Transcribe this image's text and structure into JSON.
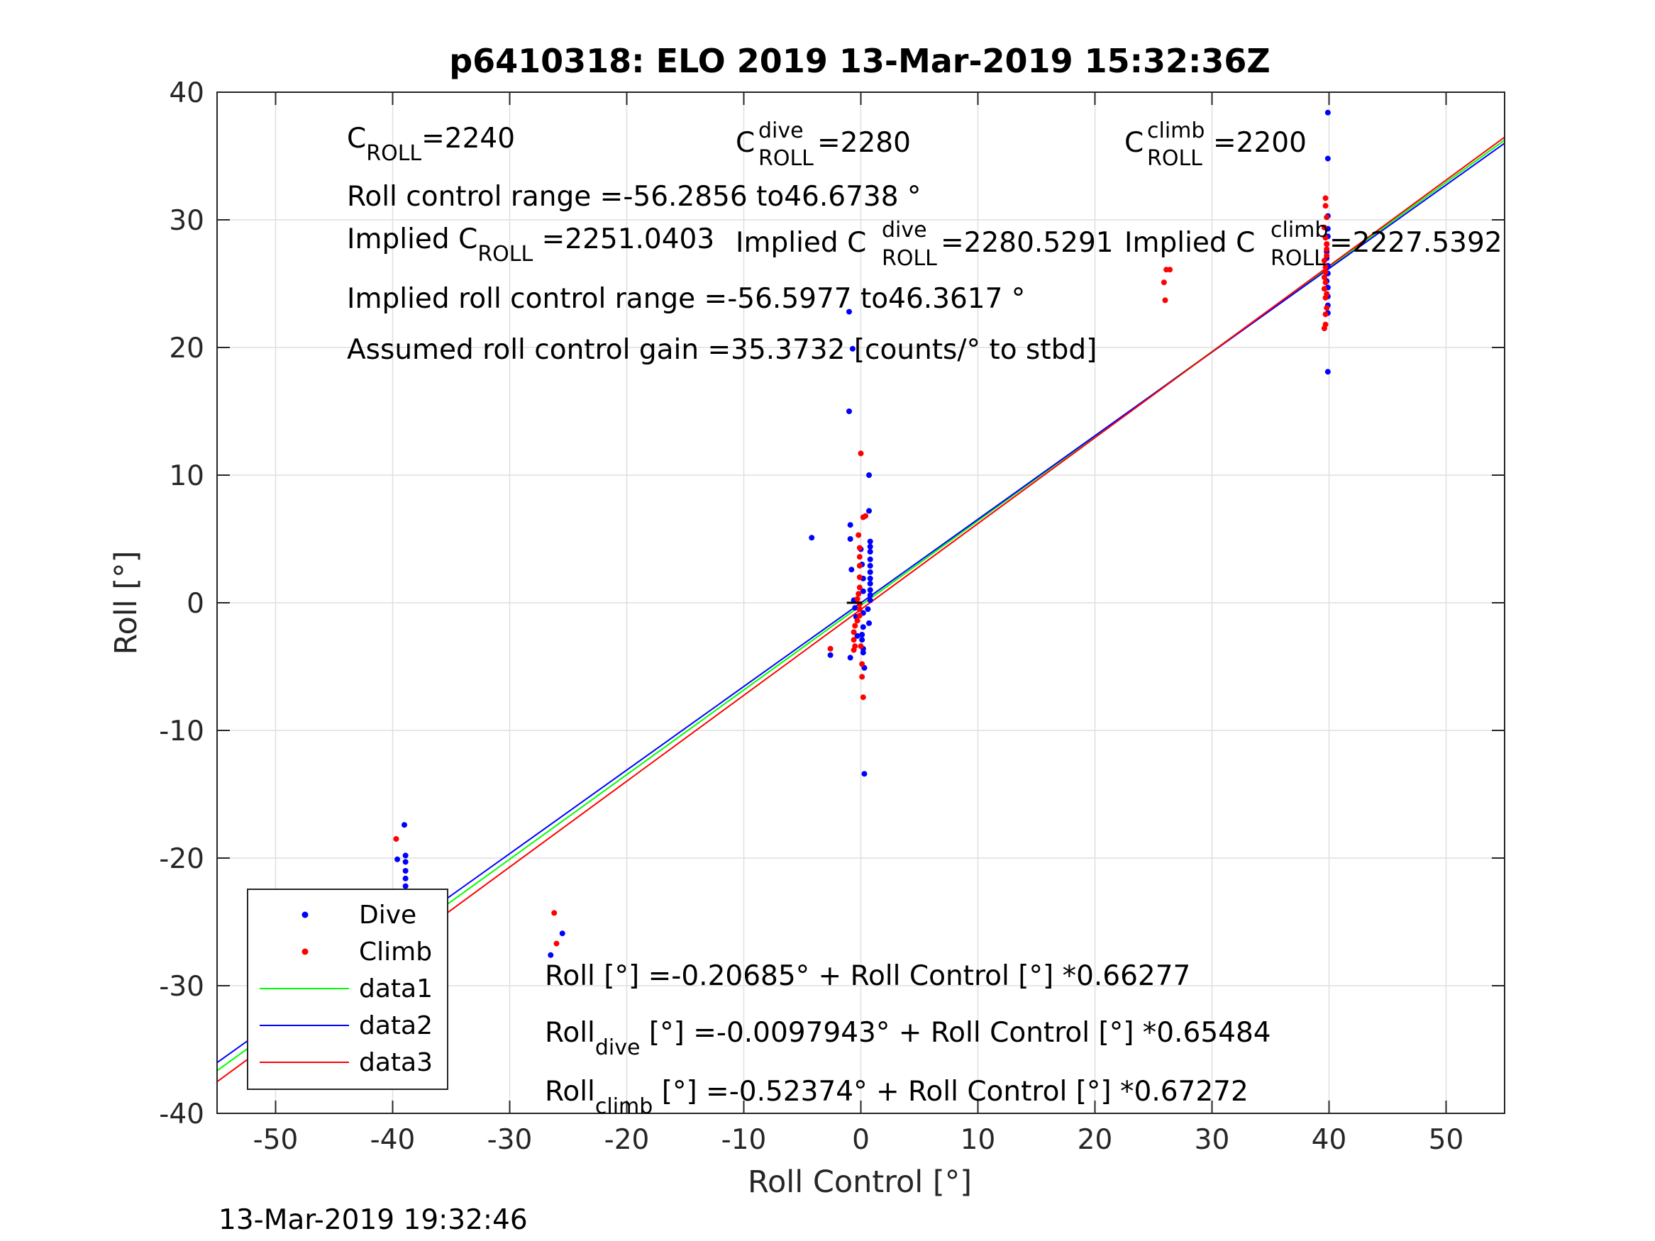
{
  "chart_data": {
    "type": "scatter",
    "title": "p6410318: ELO 2019 13-Mar-2019 15:32:36Z",
    "xlabel": "Roll Control [°]",
    "ylabel": "Roll [°]",
    "xlim": [
      -55,
      55
    ],
    "ylim": [
      -40,
      40
    ],
    "xticks": [
      -50,
      -40,
      -30,
      -20,
      -10,
      0,
      10,
      20,
      30,
      40,
      50
    ],
    "yticks": [
      -40,
      -30,
      -20,
      -10,
      0,
      10,
      20,
      30,
      40
    ],
    "xtick_labels": [
      "-50",
      "-40",
      "-30",
      "-20",
      "-10",
      "0",
      "10",
      "20",
      "30",
      "40",
      "50"
    ],
    "ytick_labels": [
      "-40",
      "-30",
      "-20",
      "-10",
      "0",
      "10",
      "20",
      "30",
      "40"
    ],
    "grid": true,
    "legend_position": "bottom-left",
    "series": [
      {
        "name": "Dive",
        "kind": "points",
        "color": "#0000ff",
        "points": [
          [
            -39.6,
            -20.1
          ],
          [
            -39.0,
            -17.4
          ],
          [
            -38.9,
            -19.8
          ],
          [
            -38.9,
            -20.3
          ],
          [
            -38.9,
            -21.0
          ],
          [
            -38.9,
            -21.6
          ],
          [
            -38.9,
            -22.2
          ],
          [
            -38.9,
            -22.8
          ],
          [
            -38.9,
            -23.5
          ],
          [
            -38.9,
            -24.2
          ],
          [
            -39.1,
            -25.1
          ],
          [
            -39.0,
            -26.0
          ],
          [
            -39.2,
            -26.8
          ],
          [
            -39.4,
            -27.3
          ],
          [
            -39.8,
            -27.6
          ],
          [
            -39.0,
            -28.2
          ],
          [
            -39.1,
            -28.5
          ],
          [
            -26.5,
            -27.6
          ],
          [
            -25.5,
            -25.9
          ],
          [
            -4.2,
            5.1
          ],
          [
            -2.6,
            -4.1
          ],
          [
            -1.0,
            22.8
          ],
          [
            -1.0,
            15.0
          ],
          [
            -0.9,
            6.1
          ],
          [
            -0.9,
            5.0
          ],
          [
            -0.8,
            2.6
          ],
          [
            -0.6,
            0.2
          ],
          [
            -0.5,
            -0.4
          ],
          [
            -0.4,
            -1.1
          ],
          [
            -0.3,
            -2.6
          ],
          [
            -0.9,
            -4.3
          ],
          [
            -0.7,
            19.9
          ],
          [
            0.0,
            4.2
          ],
          [
            0.1,
            3.0
          ],
          [
            0.2,
            1.9
          ],
          [
            0.2,
            0.9
          ],
          [
            0.2,
            -0.8
          ],
          [
            0.2,
            -1.9
          ],
          [
            0.1,
            -2.5
          ],
          [
            0.1,
            -2.9
          ],
          [
            0.2,
            -3.6
          ],
          [
            0.2,
            -3.9
          ],
          [
            0.3,
            -5.1
          ],
          [
            0.3,
            -13.4
          ],
          [
            0.7,
            10.0
          ],
          [
            0.7,
            7.2
          ],
          [
            0.8,
            4.8
          ],
          [
            0.8,
            4.4
          ],
          [
            0.8,
            4.0
          ],
          [
            0.8,
            3.4
          ],
          [
            0.8,
            2.9
          ],
          [
            0.8,
            2.4
          ],
          [
            0.8,
            1.9
          ],
          [
            0.8,
            1.5
          ],
          [
            0.8,
            1.0
          ],
          [
            0.8,
            0.6
          ],
          [
            0.8,
            0.2
          ],
          [
            0.6,
            -0.5
          ],
          [
            0.7,
            -1.6
          ],
          [
            39.9,
            38.4
          ],
          [
            39.9,
            34.8
          ],
          [
            39.9,
            30.3
          ],
          [
            39.9,
            29.3
          ],
          [
            39.9,
            28.7
          ],
          [
            39.8,
            28.1
          ],
          [
            39.8,
            27.5
          ],
          [
            39.8,
            27.0
          ],
          [
            39.9,
            26.4
          ],
          [
            39.9,
            25.8
          ],
          [
            39.8,
            25.2
          ],
          [
            39.9,
            24.7
          ],
          [
            39.9,
            24.0
          ],
          [
            39.9,
            23.3
          ],
          [
            39.9,
            22.7
          ],
          [
            39.9,
            18.1
          ]
        ]
      },
      {
        "name": "Climb",
        "kind": "points",
        "color": "#ff0000",
        "points": [
          [
            -39.7,
            -18.5
          ],
          [
            -39.8,
            -23.1
          ],
          [
            -39.8,
            -27.0
          ],
          [
            -39.7,
            -27.3
          ],
          [
            -39.8,
            -27.6
          ],
          [
            -39.6,
            -27.8
          ],
          [
            -39.8,
            -28.1
          ],
          [
            -39.7,
            -28.3
          ],
          [
            -39.9,
            -28.6
          ],
          [
            -39.6,
            -28.8
          ],
          [
            -39.7,
            -30.3
          ],
          [
            -39.8,
            -31.0
          ],
          [
            -26.2,
            -24.3
          ],
          [
            -26.0,
            -26.7
          ],
          [
            -2.6,
            -3.6
          ],
          [
            0.0,
            11.7
          ],
          [
            0.4,
            6.8
          ],
          [
            0.2,
            6.7
          ],
          [
            -0.2,
            5.3
          ],
          [
            -0.1,
            4.3
          ],
          [
            -0.1,
            3.6
          ],
          [
            -0.1,
            2.9
          ],
          [
            -0.1,
            2.0
          ],
          [
            -0.1,
            1.2
          ],
          [
            -0.2,
            0.7
          ],
          [
            -0.3,
            0.3
          ],
          [
            -0.1,
            -0.1
          ],
          [
            -0.1,
            -0.5
          ],
          [
            -0.1,
            -1.0
          ],
          [
            -0.3,
            -1.4
          ],
          [
            -0.5,
            -1.8
          ],
          [
            -0.6,
            -2.3
          ],
          [
            -0.6,
            -2.9
          ],
          [
            -0.5,
            -3.4
          ],
          [
            -0.6,
            -3.7
          ],
          [
            0.0,
            -3.4
          ],
          [
            0.1,
            -4.8
          ],
          [
            0.1,
            -5.8
          ],
          [
            0.2,
            -7.4
          ],
          [
            25.9,
            25.1
          ],
          [
            26.0,
            23.7
          ],
          [
            26.1,
            26.1
          ],
          [
            26.4,
            26.1
          ],
          [
            39.7,
            31.7
          ],
          [
            39.7,
            31.1
          ],
          [
            39.8,
            30.2
          ],
          [
            39.6,
            29.4
          ],
          [
            39.7,
            28.6
          ],
          [
            39.8,
            28.1
          ],
          [
            39.8,
            27.7
          ],
          [
            39.8,
            27.2
          ],
          [
            39.6,
            26.8
          ],
          [
            39.7,
            26.3
          ],
          [
            39.7,
            25.9
          ],
          [
            39.6,
            25.5
          ],
          [
            39.7,
            25.1
          ],
          [
            39.6,
            24.6
          ],
          [
            39.8,
            24.2
          ],
          [
            39.7,
            23.9
          ],
          [
            39.8,
            23.1
          ],
          [
            39.7,
            22.6
          ],
          [
            39.7,
            21.8
          ],
          [
            39.6,
            21.5
          ]
        ]
      },
      {
        "name": "data1",
        "kind": "line",
        "color": "#00ff00",
        "intercept": -0.20685,
        "slope": 0.66277
      },
      {
        "name": "data2",
        "kind": "line",
        "color": "#0000ff",
        "intercept": -0.0097943,
        "slope": 0.65484
      },
      {
        "name": "data3",
        "kind": "line",
        "color": "#ff0000",
        "intercept": -0.52374,
        "slope": 0.67272
      }
    ],
    "annotations": {
      "c_roll": {
        "base": "C",
        "sub": "ROLL",
        "value": "=2240"
      },
      "c_roll_dive": {
        "base": "C",
        "sup": "dive",
        "sub": "ROLL",
        "value": " =2280"
      },
      "c_roll_climb": {
        "base": "C",
        "sup": "climb",
        "sub": "ROLL",
        "value": " =2200"
      },
      "roll_control_range": "Roll control range =-56.2856 to46.6738 °",
      "implied_c_roll": {
        "base": "Implied C",
        "sub": "ROLL",
        "value": " =2251.0403"
      },
      "implied_c_roll_dive": {
        "base": "Implied C",
        "sup": "dive",
        "sub": "ROLL",
        "value": " =2280.5291"
      },
      "implied_c_roll_climb": {
        "base": "Implied C",
        "sup": "climb",
        "sub": "ROLL",
        "value": " =2227.5392"
      },
      "implied_roll_control_range": "Implied roll control range =-56.5977 to46.3617 °",
      "assumed_gain": "Assumed roll control gain =35.3732 [counts/° to stbd]",
      "fit_all": "Roll [°] =-0.20685° + Roll Control [°] *0.66277",
      "fit_dive": {
        "base": "Roll",
        "sub": "dive",
        "value": " [°] =-0.0097943° + Roll Control [°] *0.65484"
      },
      "fit_climb": {
        "base": "Roll",
        "sub": "climb",
        "value": " [°] =-0.52374° + Roll Control [°] *0.67272"
      }
    }
  },
  "footer": {
    "timestamp": "13-Mar-2019 19:32:46"
  }
}
